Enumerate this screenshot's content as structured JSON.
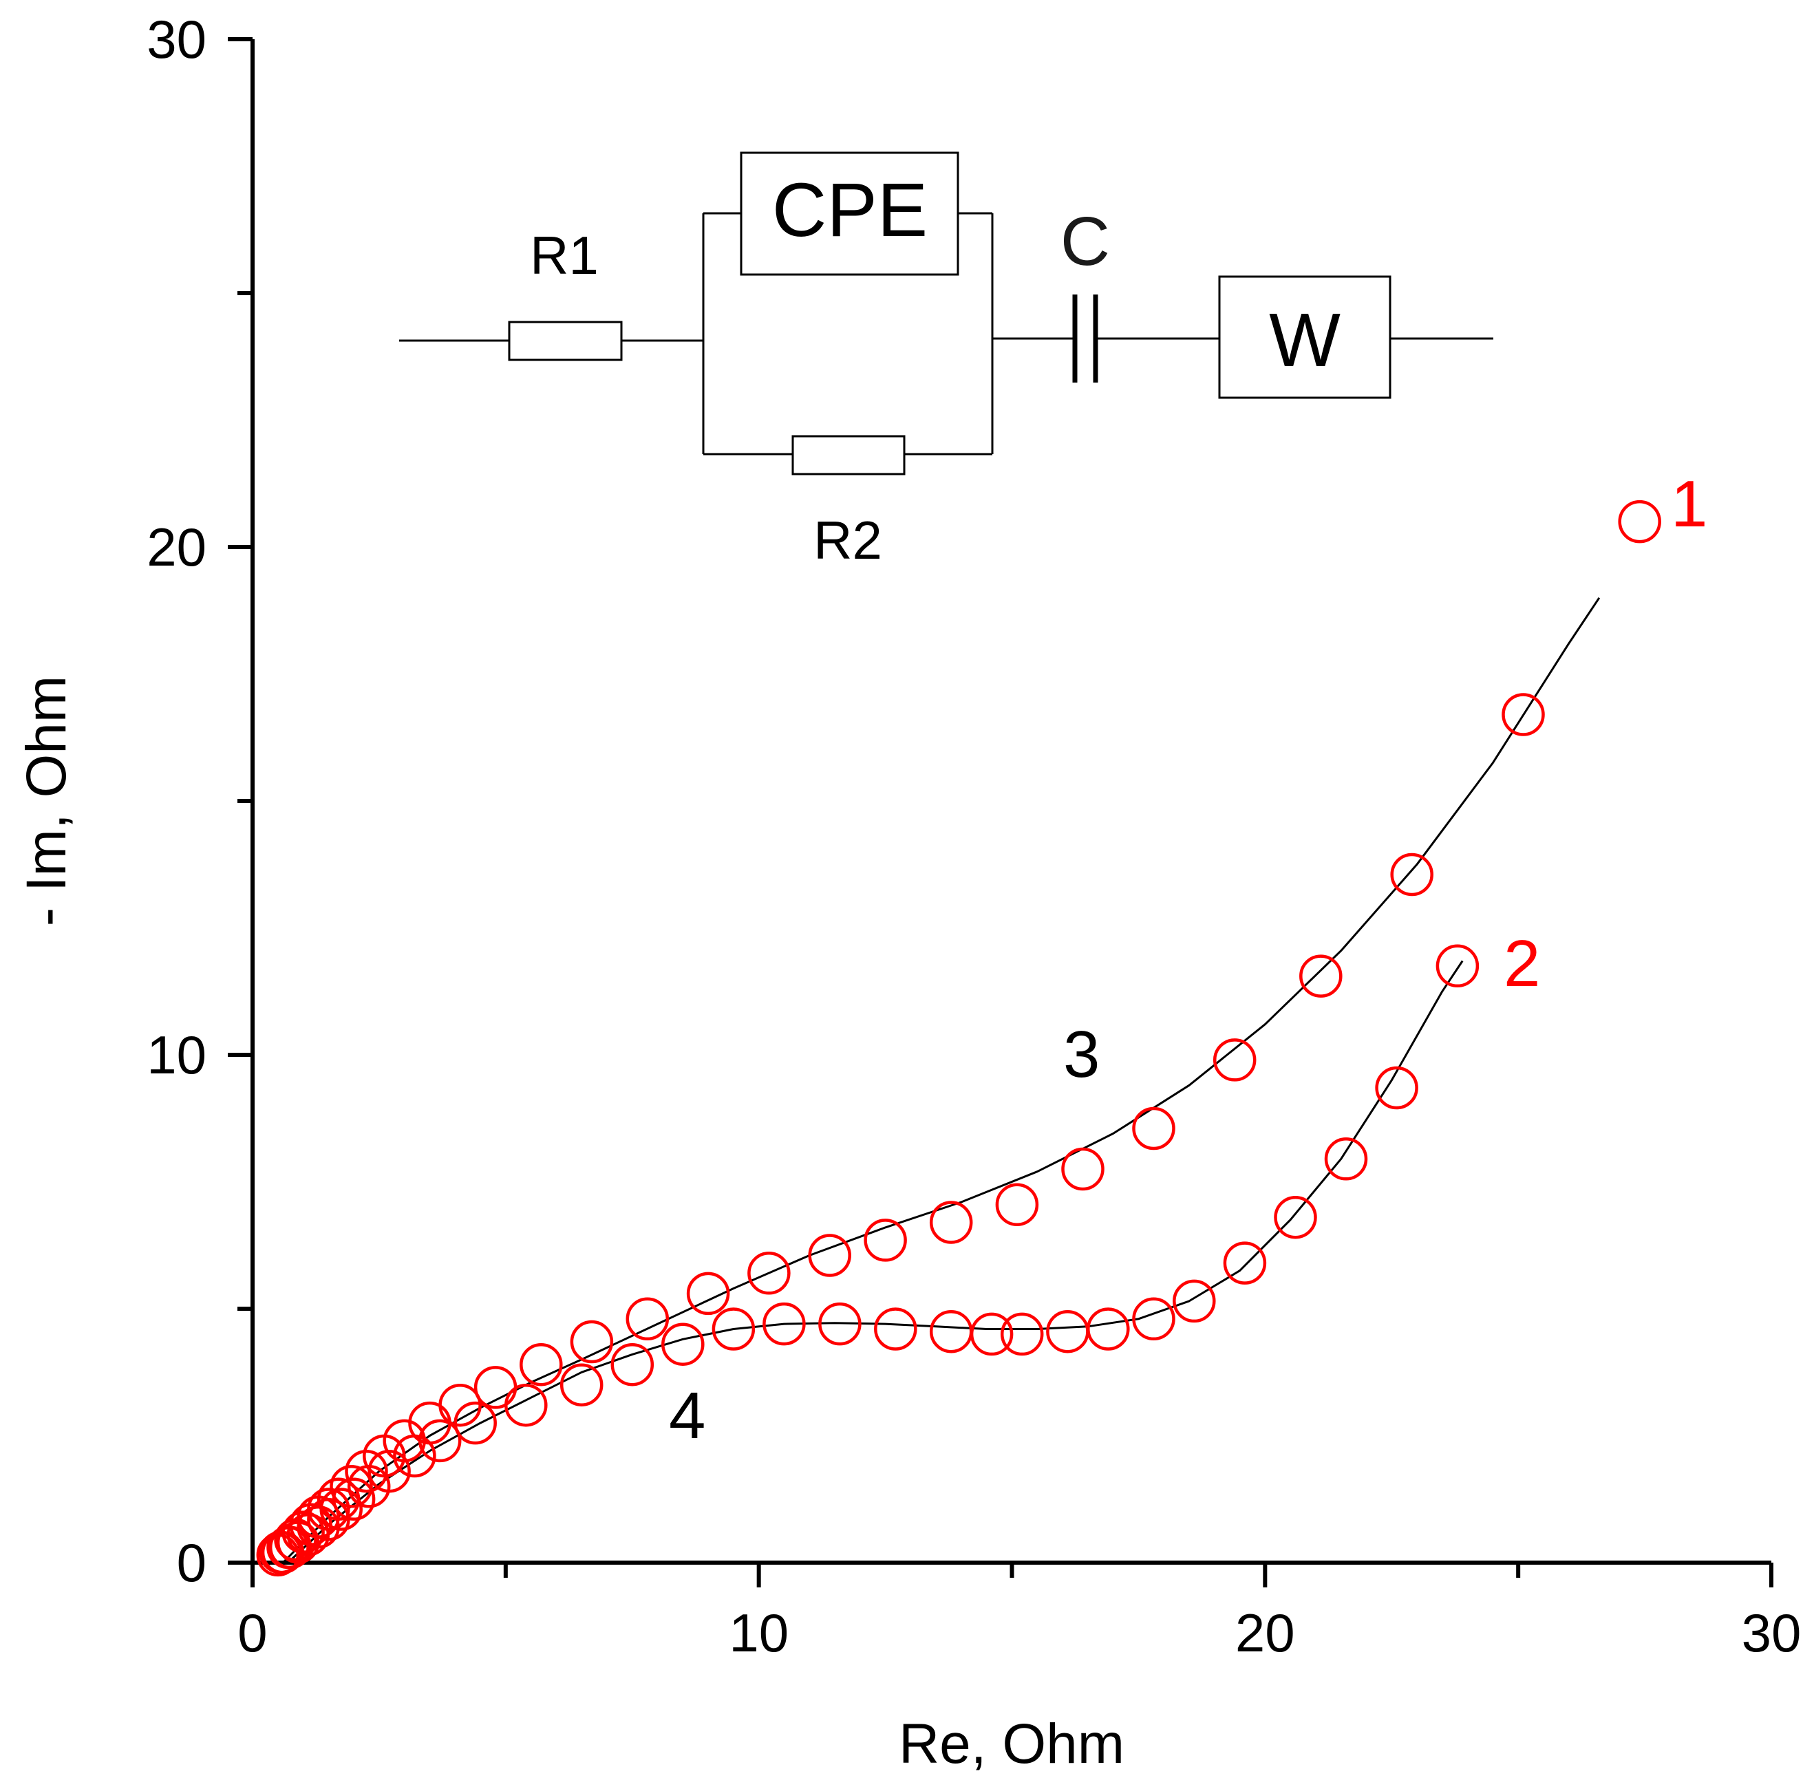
{
  "chart_data": {
    "type": "scatter",
    "title": "",
    "xlabel": "Re, Ohm",
    "ylabel": "- Im, Ohm",
    "xlim": [
      0,
      30
    ],
    "ylim": [
      0,
      30
    ],
    "xticks": [
      "0",
      "10",
      "20",
      "30"
    ],
    "yticks": [
      "0",
      "10",
      "20",
      "30"
    ],
    "grid": false,
    "colors": {
      "experimental": "#ff0000",
      "fit": "#000000"
    },
    "series": [
      {
        "name": "1",
        "kind": "experimental-circles",
        "color": "#ff0000",
        "x": [
          0.55,
          0.7,
          0.85,
          1.0,
          1.15,
          1.3,
          1.5,
          1.7,
          1.95,
          2.25,
          2.6,
          3.0,
          3.5,
          4.1,
          4.8,
          5.7,
          6.7,
          7.8,
          9.0,
          10.2,
          11.4,
          12.5,
          13.8,
          15.1,
          16.4,
          17.8,
          19.4,
          21.1,
          22.9,
          25.1,
          27.4
        ],
        "y": [
          0.2,
          0.3,
          0.45,
          0.6,
          0.75,
          0.9,
          1.05,
          1.25,
          1.5,
          1.8,
          2.1,
          2.4,
          2.75,
          3.1,
          3.45,
          3.9,
          4.35,
          4.8,
          5.3,
          5.7,
          6.05,
          6.35,
          6.7,
          7.05,
          7.75,
          8.55,
          9.9,
          11.55,
          13.55,
          16.7,
          20.5
        ]
      },
      {
        "name": "2",
        "kind": "experimental-circles",
        "color": "#ff0000",
        "x": [
          0.5,
          0.6,
          0.75,
          0.9,
          1.1,
          1.3,
          1.5,
          1.75,
          2.0,
          2.3,
          2.7,
          3.2,
          3.7,
          4.4,
          5.4,
          6.5,
          7.5,
          8.5,
          9.5,
          10.5,
          11.6,
          12.7,
          13.8,
          14.6,
          15.2,
          16.1,
          16.9,
          17.8,
          18.6,
          19.6,
          20.6,
          21.6,
          22.6,
          23.8
        ],
        "y": [
          0.15,
          0.2,
          0.3,
          0.4,
          0.55,
          0.7,
          0.85,
          1.05,
          1.25,
          1.5,
          1.8,
          2.1,
          2.4,
          2.75,
          3.1,
          3.5,
          3.9,
          4.3,
          4.6,
          4.7,
          4.7,
          4.6,
          4.55,
          4.5,
          4.5,
          4.55,
          4.6,
          4.8,
          5.15,
          5.9,
          6.8,
          7.95,
          9.35,
          11.75
        ]
      },
      {
        "name": "3",
        "kind": "fit-line",
        "color": "#000000",
        "x": [
          0.6,
          1.5,
          2.5,
          3.5,
          4.5,
          5.5,
          6.5,
          8.0,
          9.5,
          11.0,
          12.5,
          14.0,
          15.5,
          17.0,
          18.5,
          20.0,
          21.5,
          23.0,
          24.5,
          26.0,
          26.6
        ],
        "y": [
          0.0,
          0.9,
          1.8,
          2.5,
          3.05,
          3.55,
          4.0,
          4.7,
          5.4,
          6.05,
          6.6,
          7.1,
          7.7,
          8.45,
          9.4,
          10.6,
          12.05,
          13.75,
          15.75,
          18.1,
          19.0
        ]
      },
      {
        "name": "4",
        "kind": "fit-line",
        "color": "#000000",
        "x": [
          0.7,
          1.5,
          2.5,
          3.5,
          4.5,
          5.5,
          6.5,
          7.5,
          8.5,
          9.5,
          10.5,
          11.5,
          12.5,
          13.5,
          14.5,
          15.5,
          16.5,
          17.5,
          18.5,
          19.5,
          20.5,
          21.5,
          22.5,
          23.5,
          23.9
        ],
        "y": [
          0.0,
          0.75,
          1.55,
          2.2,
          2.75,
          3.25,
          3.75,
          4.1,
          4.4,
          4.6,
          4.7,
          4.72,
          4.7,
          4.65,
          4.6,
          4.6,
          4.65,
          4.8,
          5.15,
          5.75,
          6.75,
          7.95,
          9.5,
          11.25,
          11.85
        ]
      }
    ],
    "curve_labels": [
      "1",
      "2",
      "3",
      "4"
    ],
    "inset_circuit": {
      "elements": [
        "R1",
        "CPE",
        "R2",
        "C",
        "W"
      ],
      "topology": "R1 in series with (CPE parallel R2), in series with C and W"
    }
  }
}
